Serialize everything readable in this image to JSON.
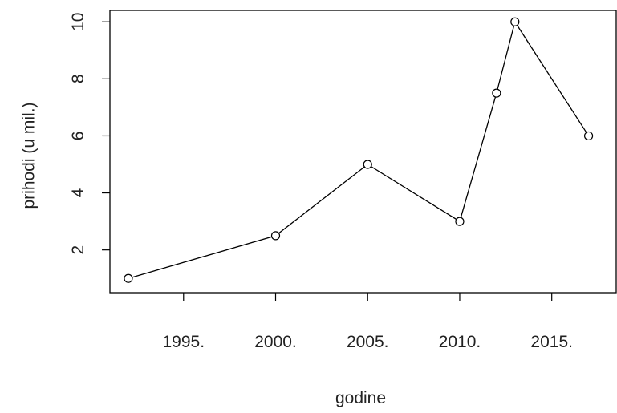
{
  "chart_data": {
    "type": "line",
    "title": "",
    "xlabel": "godine",
    "ylabel": "prihodi (u mil.)",
    "x": [
      1992,
      2000,
      2005,
      2010,
      2012,
      2013,
      2017
    ],
    "series": [
      {
        "values": [
          1,
          2.5,
          5,
          3,
          7.5,
          10,
          6
        ]
      }
    ],
    "xlim": [
      1991,
      2018.5
    ],
    "ylim": [
      0.5,
      10.4
    ],
    "x_ticks": [
      1995,
      2000,
      2005,
      2010,
      2015
    ],
    "x_tick_labels": [
      "1995.",
      "2000.",
      "2005.",
      "2010.",
      "2015."
    ],
    "y_ticks": [
      2,
      4,
      6,
      8,
      10
    ],
    "y_tick_labels": [
      "2",
      "4",
      "6",
      "8",
      "10"
    ],
    "grid": false,
    "legend": "none",
    "line_color": "#000000",
    "marker": "open-circle"
  }
}
